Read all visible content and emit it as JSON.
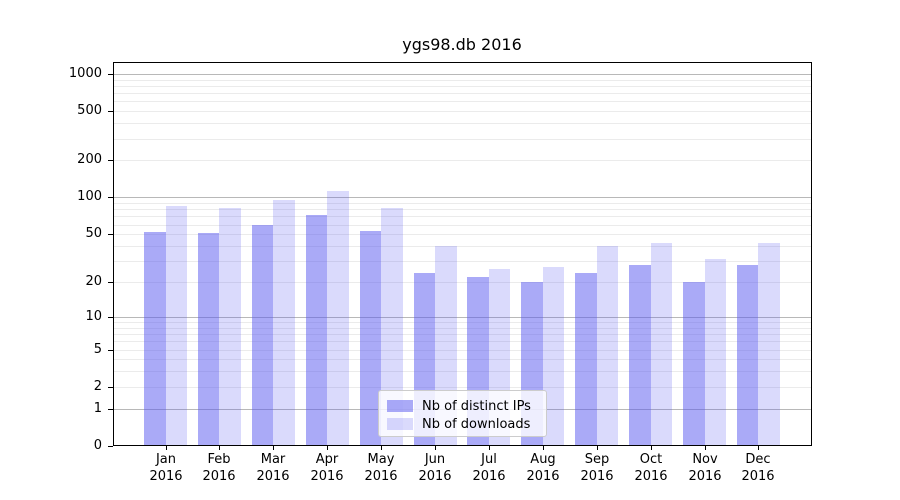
{
  "title": "ygs98.db 2016",
  "chart_data": {
    "type": "bar",
    "title": "ygs98.db 2016",
    "y_scale": "log1p (y position proportional to log10(1+value), 0 at baseline)",
    "year": "2016",
    "categories": [
      "Jan",
      "Feb",
      "Mar",
      "Apr",
      "May",
      "Jun",
      "Jul",
      "Aug",
      "Sep",
      "Oct",
      "Nov",
      "Dec"
    ],
    "series": [
      {
        "name": "Nb of distinct IPs",
        "color": "rgba(85,85,240,0.5)",
        "color_hex_on_white": "#aaaaf7",
        "values": [
          52,
          51,
          60,
          72,
          53,
          24,
          22,
          20,
          24,
          28,
          20,
          28
        ]
      },
      {
        "name": "Nb of downloads",
        "color": "rgba(85,85,240,0.22)",
        "color_hex_on_white": "#dadafb",
        "values": [
          85,
          82,
          95,
          112,
          82,
          40,
          26,
          27,
          40,
          42,
          31,
          42
        ]
      }
    ],
    "y_ticks": [
      1000,
      500,
      200,
      100,
      50,
      20,
      10,
      5,
      2,
      1,
      0
    ],
    "ylim": [
      0,
      1250
    ],
    "grid": {
      "major_values": [
        1,
        10,
        100,
        1000
      ],
      "minor": "2-9 per decade",
      "major_color": "#b8b8b8",
      "minor_color": "#ebebeb"
    },
    "legend_position": "lower center",
    "axis_color": "#000000"
  }
}
